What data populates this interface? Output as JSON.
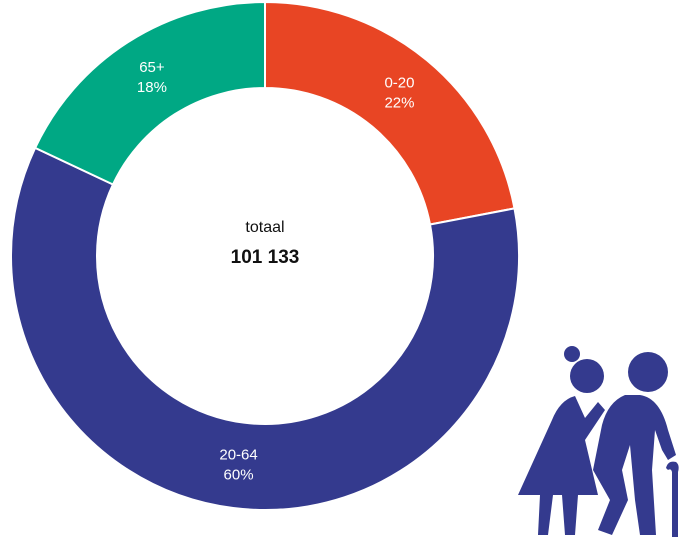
{
  "chart_data": {
    "type": "donut",
    "categories": [
      "0-20",
      "20-64",
      "65+"
    ],
    "values": [
      22,
      60,
      18
    ],
    "value_labels": [
      "22%",
      "60%",
      "18%"
    ],
    "colors": [
      "#e84524",
      "#343a8e",
      "#00a884"
    ],
    "center_title": "totaal",
    "center_value": "101 133"
  }
}
